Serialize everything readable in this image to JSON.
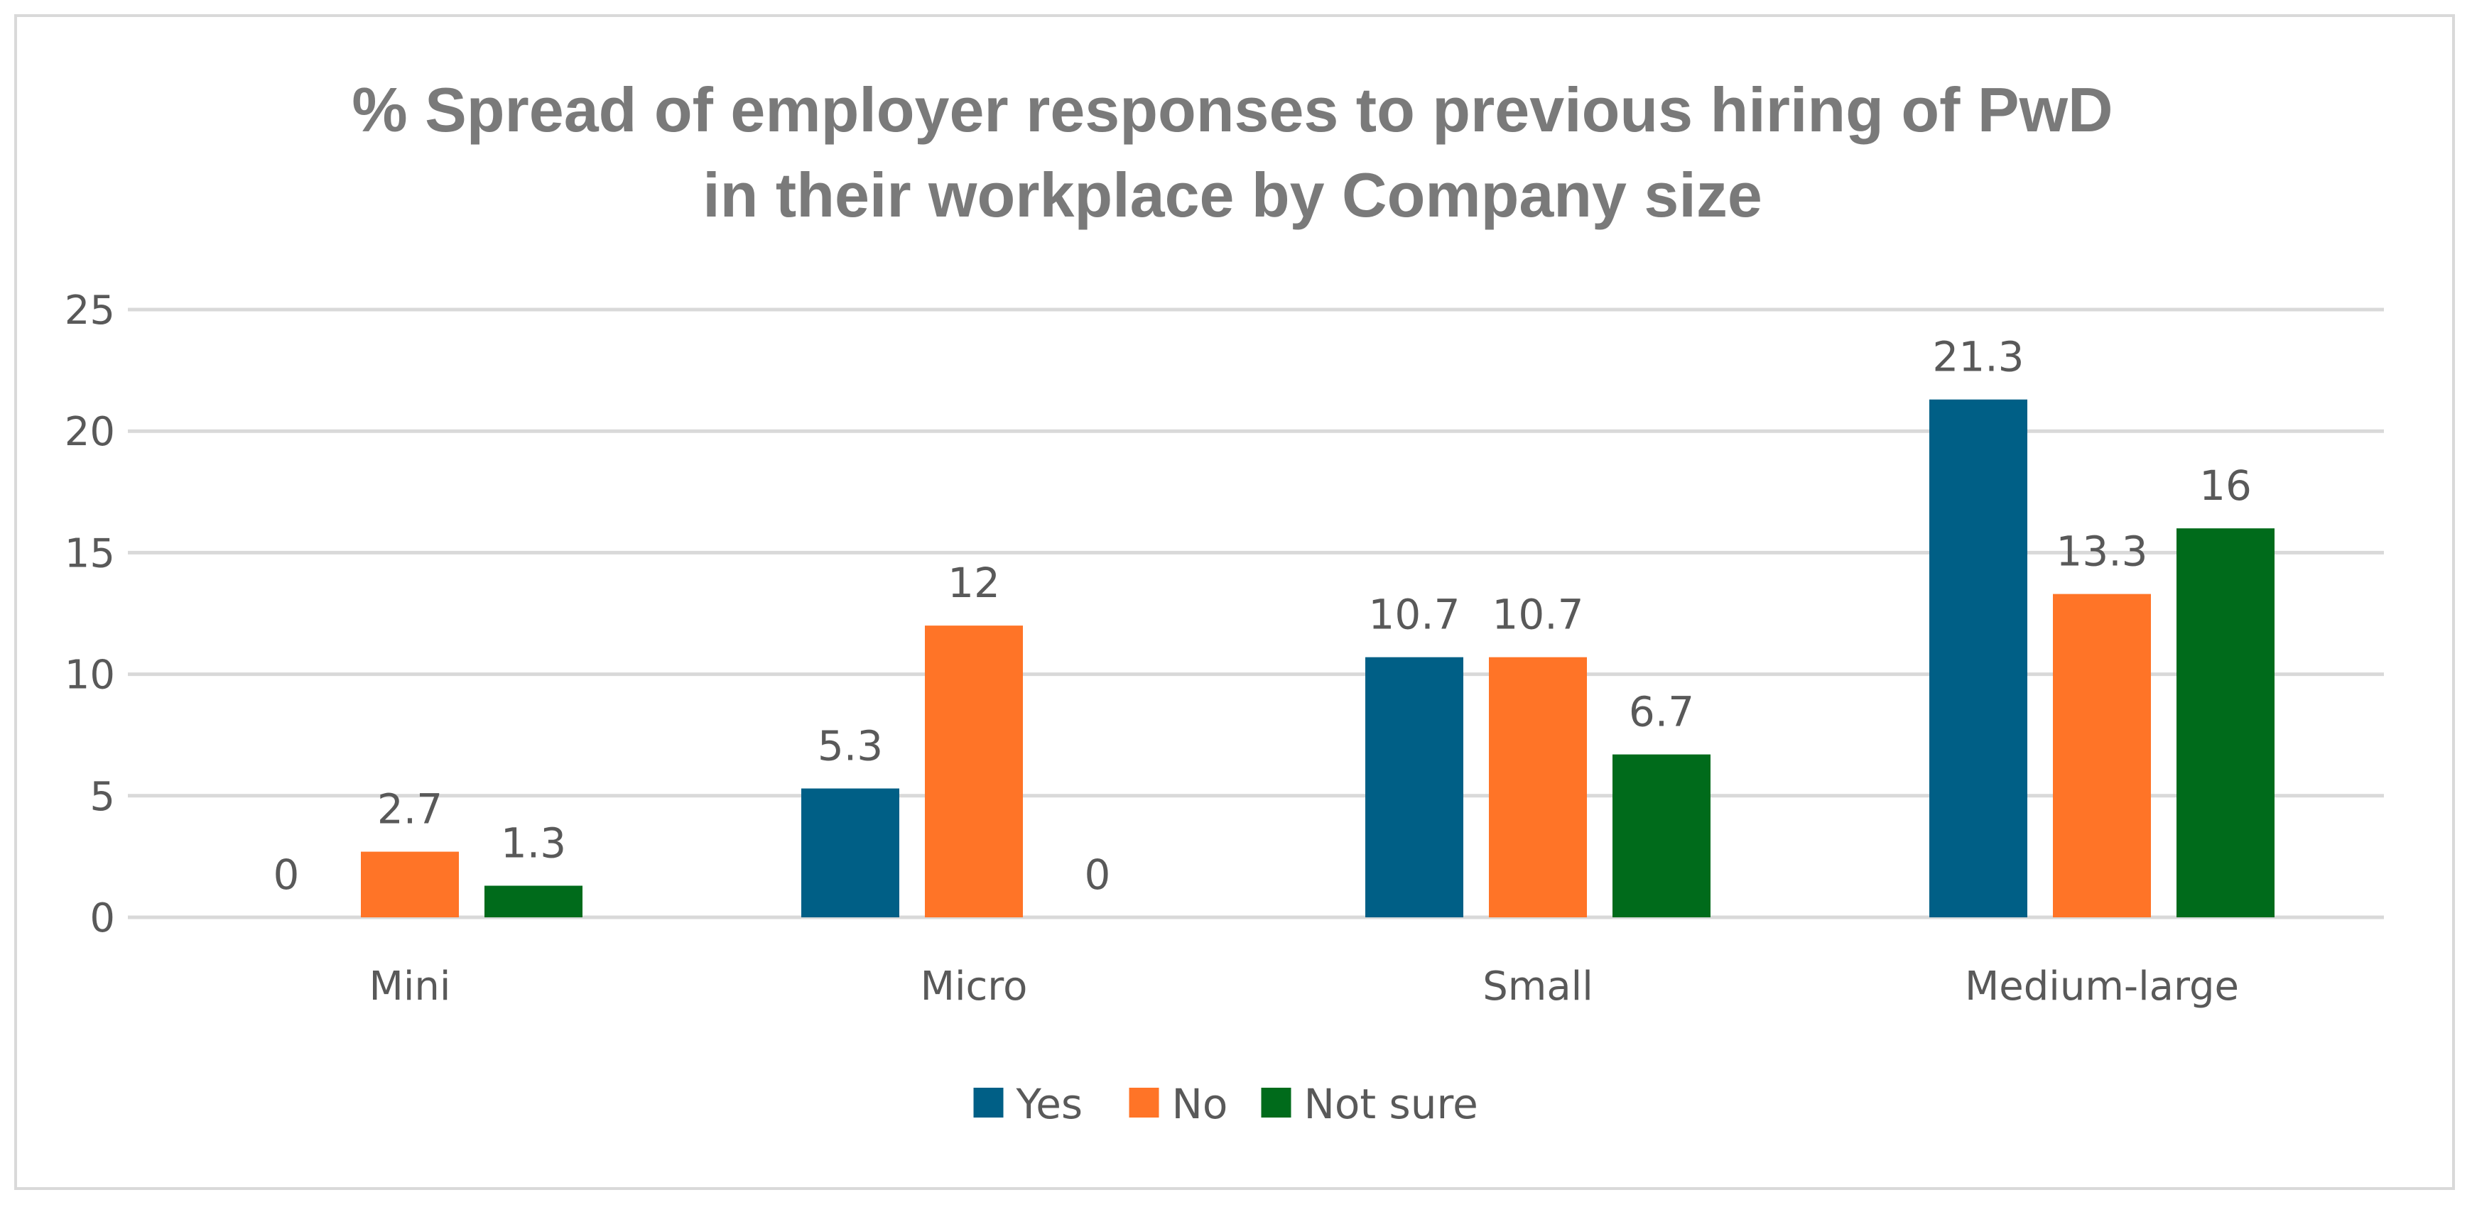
{
  "chart_data": {
    "type": "bar",
    "title_lines": [
      "% Spread of employer responses to previous hiring of PwD",
      "in their workplace by Company size"
    ],
    "categories": [
      "Mini",
      "Micro",
      "Small",
      "Medium-large"
    ],
    "series": [
      {
        "name": "Yes",
        "color": "#005f86",
        "values": [
          0,
          5.3,
          10.7,
          21.3
        ]
      },
      {
        "name": "No",
        "color": "#ff7427",
        "values": [
          2.7,
          12,
          10.7,
          13.3
        ]
      },
      {
        "name": "Not sure",
        "color": "#006b1b",
        "values": [
          1.3,
          0,
          6.7,
          16
        ]
      }
    ],
    "ylim": [
      0,
      25
    ],
    "yticks": [
      0,
      5,
      10,
      15,
      20,
      25
    ],
    "xlabel": "",
    "ylabel": "",
    "grid": true,
    "legend_position": "bottom"
  }
}
